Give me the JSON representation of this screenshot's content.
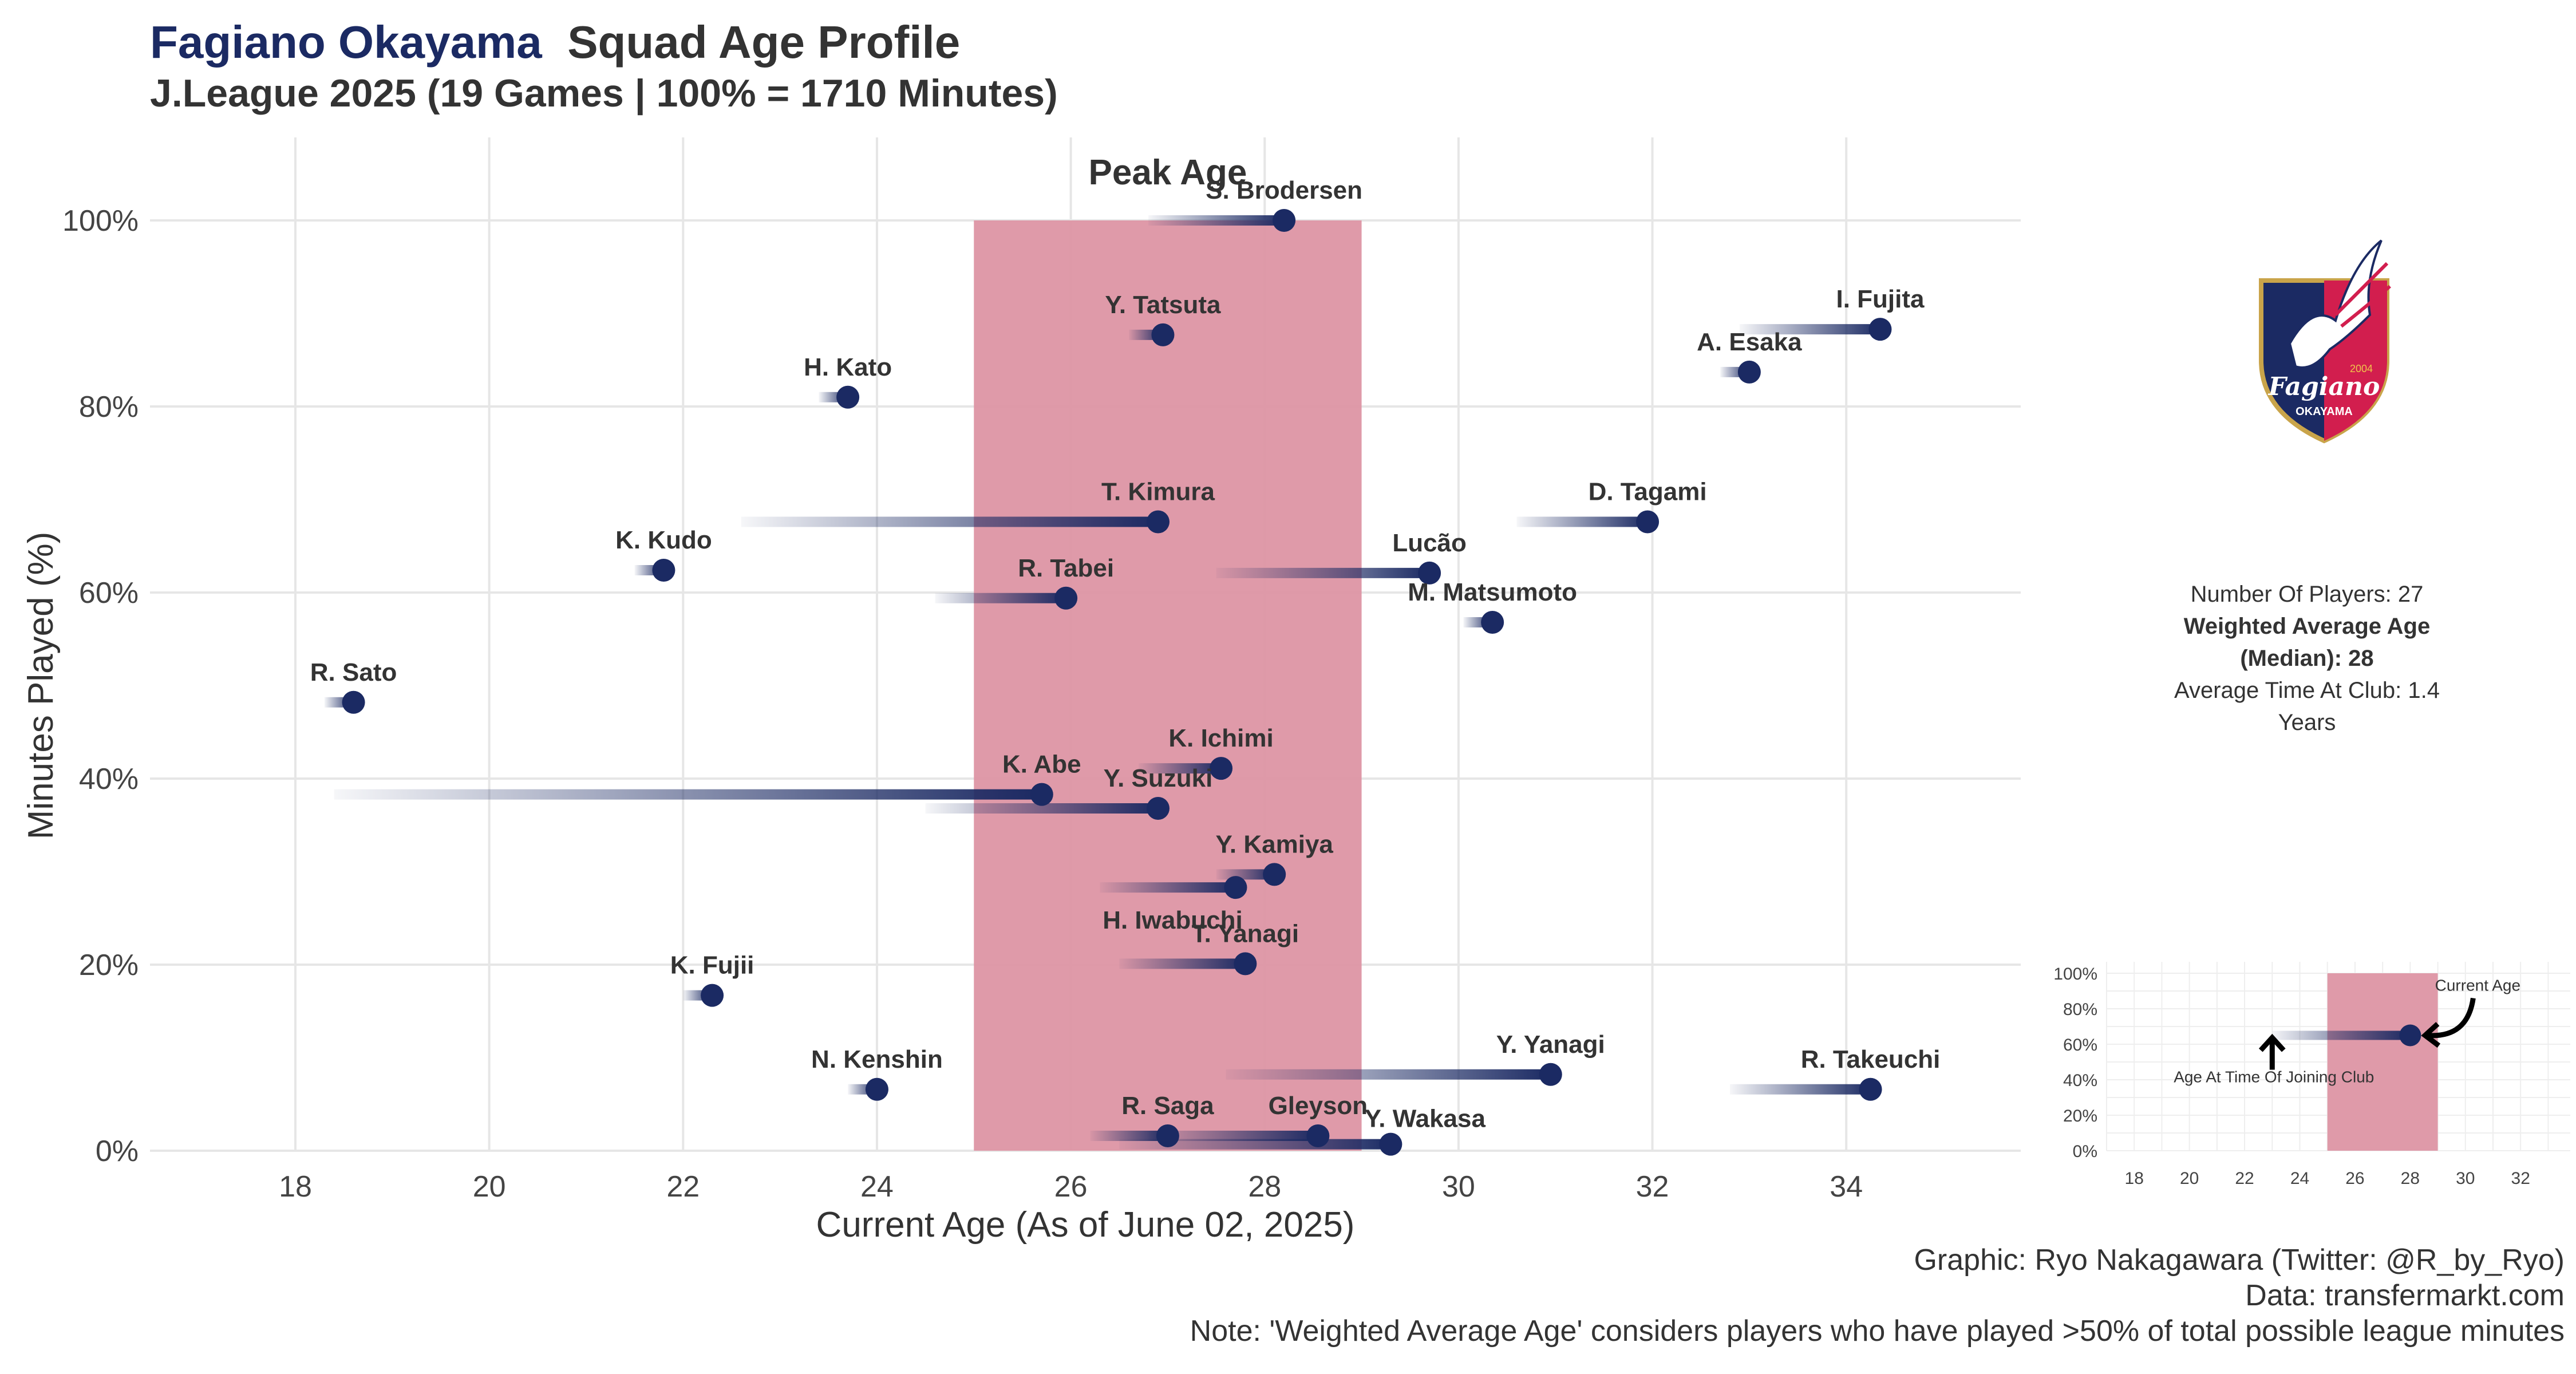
{
  "header": {
    "club_name": "Fagiano Okayama",
    "title_rest": "Squad Age Profile",
    "subtitle": "J.League 2025 (19 Games | 100% = 1710 Minutes)"
  },
  "colors": {
    "navy": "#1b2a63",
    "peak_band": "#dd95a4",
    "grid": "#e6e6e6",
    "text": "#333333"
  },
  "logo": {
    "icon": "fagiano-okayama-crest-icon",
    "text": "Fagiano",
    "sub_text": "OKAYAMA",
    "year": "2004"
  },
  "stats": {
    "players": "Number Of Players: 27",
    "weighted_age": "Weighted Average Age (Median): 28",
    "time_at_club": "Average Time At Club: 1.4 Years"
  },
  "credits": {
    "graphic": "Graphic: Ryo Nakagawara (Twitter: @R_by_Ryo)",
    "data": "Data: transfermarkt.com",
    "note": "Note: 'Weighted Average Age' considers players who have played >50% of total possible league minutes"
  },
  "chart_data": [
    {
      "type": "scatter",
      "title": "",
      "xlabel": "Current Age (As of June 02, 2025)",
      "ylabel": "Minutes Played (%)",
      "xlim": [
        16.5,
        35.8
      ],
      "ylim": [
        0,
        1.08
      ],
      "x_ticks": [
        18,
        20,
        22,
        24,
        26,
        28,
        30,
        32,
        34
      ],
      "y_ticks": [
        {
          "value": 0,
          "label": "0%"
        },
        {
          "value": 0.2,
          "label": "20%"
        },
        {
          "value": 0.4,
          "label": "40%"
        },
        {
          "value": 0.6,
          "label": "60%"
        },
        {
          "value": 0.8,
          "label": "80%"
        },
        {
          "value": 1.0,
          "label": "100%"
        }
      ],
      "peak_age": {
        "label": "Peak Age",
        "from": 25,
        "to": 29
      },
      "grid": true,
      "players": [
        {
          "name": "S. Brodersen",
          "age": 28.2,
          "joined_age": 26.8,
          "minutes": 1.0,
          "label_side": "above"
        },
        {
          "name": "Y. Tatsuta",
          "age": 26.95,
          "joined_age": 26.6,
          "minutes": 0.877,
          "label_side": "above"
        },
        {
          "name": "I. Fujita",
          "age": 34.35,
          "joined_age": 32.9,
          "minutes": 0.883,
          "label_side": "above"
        },
        {
          "name": "A. Esaka",
          "age": 33.0,
          "joined_age": 32.7,
          "minutes": 0.837,
          "label_side": "above"
        },
        {
          "name": "H. Kato",
          "age": 23.7,
          "joined_age": 23.4,
          "minutes": 0.81,
          "label_side": "above"
        },
        {
          "name": "T. Kimura",
          "age": 26.9,
          "joined_age": 22.6,
          "minutes": 0.676,
          "label_side": "above"
        },
        {
          "name": "D. Tagami",
          "age": 31.95,
          "joined_age": 30.6,
          "minutes": 0.676,
          "label_side": "above"
        },
        {
          "name": "K. Kudo",
          "age": 21.8,
          "joined_age": 21.5,
          "minutes": 0.624,
          "label_side": "above"
        },
        {
          "name": "Lucão",
          "age": 29.7,
          "joined_age": 27.5,
          "minutes": 0.621,
          "label_side": "above"
        },
        {
          "name": "R. Tabei",
          "age": 25.95,
          "joined_age": 24.6,
          "minutes": 0.594,
          "label_side": "above"
        },
        {
          "name": "M. Matsumoto",
          "age": 30.35,
          "joined_age": 30.05,
          "minutes": 0.568,
          "label_side": "above"
        },
        {
          "name": "R. Sato",
          "age": 18.6,
          "joined_age": 18.3,
          "minutes": 0.482,
          "label_side": "above"
        },
        {
          "name": "K. Ichimi",
          "age": 27.55,
          "joined_age": 26.7,
          "minutes": 0.411,
          "label_side": "above"
        },
        {
          "name": "K. Abe",
          "age": 25.7,
          "joined_age": 18.4,
          "minutes": 0.383,
          "label_side": "above"
        },
        {
          "name": "Y. Suzuki",
          "age": 26.9,
          "joined_age": 24.5,
          "minutes": 0.368,
          "label_side": "above"
        },
        {
          "name": "Y. Kamiya",
          "age": 28.1,
          "joined_age": 27.5,
          "minutes": 0.297,
          "label_side": "above"
        },
        {
          "name": "H. Iwabuchi",
          "age": 27.7,
          "joined_age": 26.3,
          "minutes": 0.283,
          "label_side": "below"
        },
        {
          "name": "T. Yanagi",
          "age": 27.8,
          "joined_age": 26.5,
          "minutes": 0.201,
          "label_side": "above"
        },
        {
          "name": "K. Fujii",
          "age": 22.3,
          "joined_age": 22.0,
          "minutes": 0.167,
          "label_side": "above"
        },
        {
          "name": "Y. Yanagi",
          "age": 30.95,
          "joined_age": 27.6,
          "minutes": 0.082,
          "label_side": "above"
        },
        {
          "name": "R. Takeuchi",
          "age": 34.25,
          "joined_age": 32.8,
          "minutes": 0.066,
          "label_side": "above"
        },
        {
          "name": "N. Kenshin",
          "age": 24.0,
          "joined_age": 23.7,
          "minutes": 0.066,
          "label_side": "above"
        },
        {
          "name": "R. Saga",
          "age": 27.0,
          "joined_age": 26.2,
          "minutes": 0.016,
          "label_side": "above"
        },
        {
          "name": "Gleyson",
          "age": 28.55,
          "joined_age": 26.8,
          "minutes": 0.016,
          "label_side": "above"
        },
        {
          "name": "Y. Wakasa",
          "age": 29.3,
          "joined_age": 26.5,
          "minutes": 0.007,
          "label_side": "right-above"
        }
      ]
    },
    {
      "type": "scatter",
      "title": "",
      "xlabel": "",
      "ylabel": "",
      "xlim": [
        17,
        33.8
      ],
      "ylim": [
        0,
        1.0
      ],
      "x_ticks": [
        18,
        20,
        22,
        24,
        26,
        28,
        30,
        32
      ],
      "y_ticks": [
        {
          "value": 0,
          "label": "0%"
        },
        {
          "value": 0.2,
          "label": "20%"
        },
        {
          "value": 0.4,
          "label": "40%"
        },
        {
          "value": 0.6,
          "label": "60%"
        },
        {
          "value": 0.8,
          "label": "80%"
        },
        {
          "value": 1.0,
          "label": "100%"
        }
      ],
      "peak_age": {
        "from": 25,
        "to": 29
      },
      "grid": true,
      "example": {
        "age": 28,
        "joined_age": 23,
        "minutes": 0.65
      },
      "annotations": {
        "current": "Current Age",
        "joined": "Age At Time Of Joining Club"
      }
    }
  ]
}
